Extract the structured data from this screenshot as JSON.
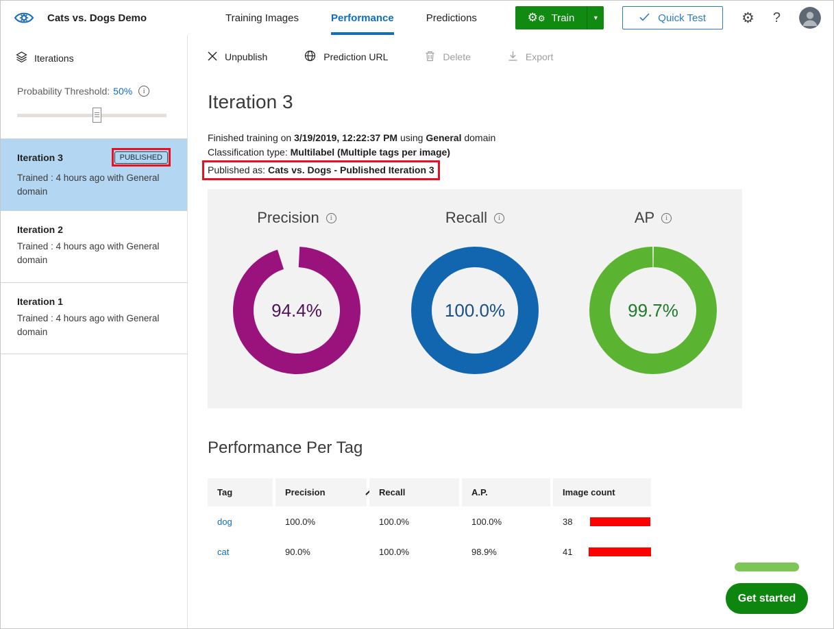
{
  "header": {
    "app_title": "Cats vs. Dogs Demo",
    "tabs": [
      {
        "label": "Training Images",
        "active": false
      },
      {
        "label": "Performance",
        "active": true
      },
      {
        "label": "Predictions",
        "active": false
      }
    ],
    "train_button_label": "Train",
    "quick_test_label": "Quick Test",
    "help_label": "?"
  },
  "sidebar": {
    "iterations_label": "Iterations",
    "probability_threshold_label": "Probability Threshold:",
    "probability_threshold_value": "50%",
    "iterations": [
      {
        "name": "Iteration 3",
        "badge": "PUBLISHED",
        "description": "Trained : 4 hours ago with General domain",
        "selected": true
      },
      {
        "name": "Iteration 2",
        "badge": "",
        "description": "Trained : 4 hours ago with General domain",
        "selected": false
      },
      {
        "name": "Iteration 1",
        "badge": "",
        "description": "Trained : 4 hours ago with General domain",
        "selected": false
      }
    ]
  },
  "toolbar": {
    "unpublish_label": "Unpublish",
    "prediction_url_label": "Prediction URL",
    "delete_label": "Delete",
    "export_label": "Export"
  },
  "main": {
    "title": "Iteration 3",
    "training_line": {
      "prefix": "Finished training on ",
      "datetime": "3/19/2019, 12:22:37 PM",
      "middle": " using ",
      "domain": "General",
      "suffix": " domain"
    },
    "classification_line": {
      "prefix": "Classification type: ",
      "value": "Multilabel (Multiple tags per image)"
    },
    "published_line": {
      "prefix": "Published as: ",
      "value": "Cats vs. Dogs - Published Iteration 3"
    },
    "per_tag_title": "Performance Per Tag"
  },
  "chart_data": [
    {
      "type": "pie",
      "title": "Iteration 3 overall metrics (donut gauges)",
      "legend_position": "none",
      "charts": [
        {
          "label": "Precision",
          "value": 94.4,
          "display": "94.4%",
          "color": "#9a137d",
          "text_color": "#4e1457"
        },
        {
          "label": "Recall",
          "value": 100.0,
          "display": "100.0%",
          "color": "#1266af",
          "text_color": "#174f87"
        },
        {
          "label": "AP",
          "value": 99.7,
          "display": "99.7%",
          "color": "#5bb431",
          "text_color": "#1e7b28"
        }
      ]
    },
    {
      "type": "table",
      "title": "Performance Per Tag",
      "columns": [
        "Tag",
        "Precision",
        "Recall",
        "A.P.",
        "Image count"
      ],
      "sort": {
        "column": "Precision",
        "direction": "asc"
      },
      "bar_color": "#ff0000",
      "rows": [
        {
          "tag": "dog",
          "precision": "100.0%",
          "recall": "100.0%",
          "ap": "100.0%",
          "image_count": 38
        },
        {
          "tag": "cat",
          "precision": "90.0%",
          "recall": "100.0%",
          "ap": "98.9%",
          "image_count": 41
        }
      ]
    }
  ],
  "chat_widget": {
    "cta_label": "Get started"
  },
  "colors": {
    "accent_blue": "#106ebe",
    "selected_item_bg": "#b3d7f2",
    "annotation_red": "#e81123",
    "train_green": "#118a11",
    "chat_green": "#0e850e",
    "panel_gray": "#f2f2f2"
  }
}
